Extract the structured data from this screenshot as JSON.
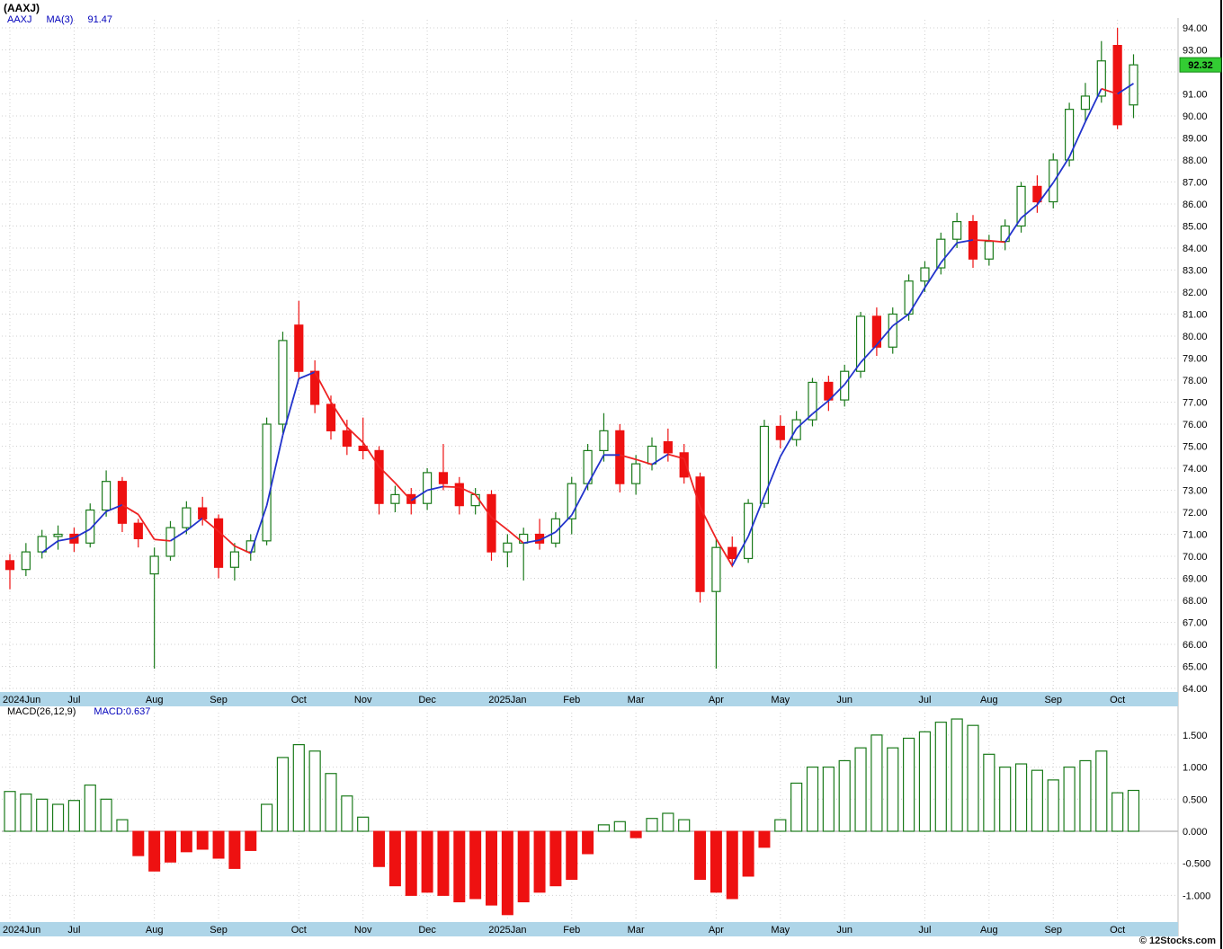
{
  "header": {
    "title": "(AAXJ)",
    "legend": {
      "symbol": "AAXJ",
      "ma_label": "MA(3)",
      "ma_value": "91.47"
    }
  },
  "price_axis": {
    "min": 64,
    "max": 94,
    "step": 1,
    "current_price": 92.32
  },
  "macd_panel": {
    "legend_label": "MACD(26,12,9)",
    "legend_value": "MACD:0.637",
    "axis_ticks": [
      1.5,
      1.0,
      0.5,
      0.0,
      -0.5,
      -1.0
    ],
    "current": 0.637
  },
  "footer": {
    "copyright": "© 12Stocks.com"
  },
  "colors": {
    "up": "#1a7a1a",
    "down": "#ee1111",
    "ma_up": "#2233cc",
    "ma_down": "#ee2222",
    "band": "#aed5e8",
    "grid": "#d0d0d0",
    "zero_line": "#999999",
    "badge_bg": "#33cc33",
    "badge_border": "#118811",
    "axis_text": "#000000",
    "legend_blue": "#0000bb"
  },
  "chart_data": {
    "type": "candlestick",
    "title": "(AAXJ)",
    "timeframe": "weekly",
    "ylim": [
      64,
      94
    ],
    "ohlc_format": [
      "open",
      "high",
      "low",
      "close"
    ],
    "months": [
      {
        "label": "2024Jun",
        "index": 0
      },
      {
        "label": "Jul",
        "index": 4
      },
      {
        "label": "Aug",
        "index": 9
      },
      {
        "label": "Sep",
        "index": 13
      },
      {
        "label": "Oct",
        "index": 18
      },
      {
        "label": "Nov",
        "index": 22
      },
      {
        "label": "Dec",
        "index": 26
      },
      {
        "label": "2025Jan",
        "index": 31
      },
      {
        "label": "Feb",
        "index": 35
      },
      {
        "label": "Mar",
        "index": 39
      },
      {
        "label": "Apr",
        "index": 44
      },
      {
        "label": "May",
        "index": 48
      },
      {
        "label": "Jun",
        "index": 52
      },
      {
        "label": "Jul",
        "index": 57
      },
      {
        "label": "Aug",
        "index": 61
      },
      {
        "label": "Sep",
        "index": 65
      },
      {
        "label": "Oct",
        "index": 69
      }
    ],
    "ohlc": [
      [
        69.8,
        70.1,
        68.5,
        69.4
      ],
      [
        69.4,
        70.6,
        69.1,
        70.2
      ],
      [
        70.2,
        71.2,
        69.9,
        70.9
      ],
      [
        70.9,
        71.4,
        70.3,
        71.0
      ],
      [
        71.0,
        71.3,
        70.2,
        70.6
      ],
      [
        70.6,
        72.4,
        70.4,
        72.1
      ],
      [
        72.1,
        73.9,
        71.8,
        73.4
      ],
      [
        73.4,
        73.6,
        71.1,
        71.5
      ],
      [
        71.5,
        71.7,
        70.4,
        70.8
      ],
      [
        69.2,
        70.4,
        64.9,
        70.0
      ],
      [
        70.0,
        71.6,
        69.8,
        71.3
      ],
      [
        71.3,
        72.5,
        71.0,
        72.2
      ],
      [
        72.2,
        72.7,
        71.4,
        71.7
      ],
      [
        71.7,
        71.9,
        69.0,
        69.5
      ],
      [
        69.5,
        70.6,
        68.9,
        70.2
      ],
      [
        70.2,
        71.0,
        69.8,
        70.7
      ],
      [
        70.7,
        76.3,
        70.5,
        76.0
      ],
      [
        76.0,
        80.2,
        75.6,
        79.8
      ],
      [
        80.5,
        81.6,
        78.0,
        78.4
      ],
      [
        78.4,
        78.9,
        76.5,
        76.9
      ],
      [
        76.9,
        77.3,
        75.3,
        75.7
      ],
      [
        75.7,
        76.2,
        74.6,
        75.0
      ],
      [
        75.0,
        76.3,
        74.4,
        74.8
      ],
      [
        74.8,
        75.0,
        71.9,
        72.4
      ],
      [
        72.4,
        73.2,
        72.0,
        72.8
      ],
      [
        72.8,
        73.1,
        71.9,
        72.4
      ],
      [
        72.4,
        74.0,
        72.1,
        73.8
      ],
      [
        73.8,
        75.1,
        73.0,
        73.3
      ],
      [
        73.3,
        73.6,
        71.9,
        72.3
      ],
      [
        72.3,
        73.1,
        71.9,
        72.8
      ],
      [
        72.8,
        73.0,
        69.8,
        70.2
      ],
      [
        70.2,
        71.0,
        69.5,
        70.6
      ],
      [
        70.6,
        71.3,
        68.9,
        71.0
      ],
      [
        71.0,
        71.7,
        70.3,
        70.6
      ],
      [
        70.6,
        72.0,
        70.4,
        71.7
      ],
      [
        71.7,
        73.6,
        71.0,
        73.3
      ],
      [
        73.3,
        75.1,
        73.0,
        74.8
      ],
      [
        74.8,
        76.5,
        74.3,
        75.7
      ],
      [
        75.7,
        76.0,
        72.9,
        73.3
      ],
      [
        73.3,
        74.6,
        72.8,
        74.2
      ],
      [
        74.2,
        75.4,
        73.9,
        75.0
      ],
      [
        75.2,
        75.8,
        74.3,
        74.7
      ],
      [
        74.7,
        75.1,
        73.3,
        73.6
      ],
      [
        73.6,
        73.8,
        67.9,
        68.4
      ],
      [
        68.4,
        70.8,
        64.9,
        70.4
      ],
      [
        70.4,
        70.9,
        69.5,
        69.9
      ],
      [
        69.9,
        72.6,
        69.7,
        72.4
      ],
      [
        72.4,
        76.2,
        72.2,
        75.9
      ],
      [
        75.9,
        76.4,
        74.9,
        75.3
      ],
      [
        75.3,
        76.6,
        75.0,
        76.2
      ],
      [
        76.2,
        78.1,
        75.9,
        77.9
      ],
      [
        77.9,
        78.2,
        76.6,
        77.1
      ],
      [
        77.1,
        78.7,
        76.8,
        78.4
      ],
      [
        78.4,
        81.1,
        78.1,
        80.9
      ],
      [
        80.9,
        81.3,
        79.1,
        79.5
      ],
      [
        79.5,
        81.3,
        79.2,
        81.0
      ],
      [
        81.0,
        82.8,
        80.7,
        82.5
      ],
      [
        82.5,
        83.4,
        82.0,
        83.1
      ],
      [
        83.1,
        84.7,
        82.8,
        84.4
      ],
      [
        84.4,
        85.6,
        84.0,
        85.2
      ],
      [
        85.2,
        85.5,
        83.1,
        83.5
      ],
      [
        83.5,
        84.6,
        83.2,
        84.3
      ],
      [
        84.3,
        85.3,
        83.9,
        85.0
      ],
      [
        85.0,
        87.0,
        84.7,
        86.8
      ],
      [
        86.8,
        87.3,
        85.6,
        86.1
      ],
      [
        86.1,
        88.3,
        85.8,
        88.0
      ],
      [
        88.0,
        90.6,
        87.7,
        90.3
      ],
      [
        90.3,
        91.5,
        89.7,
        90.9
      ],
      [
        90.9,
        93.4,
        90.6,
        92.5
      ],
      [
        93.2,
        94.0,
        89.4,
        89.6
      ],
      [
        90.5,
        92.8,
        89.9,
        92.32
      ]
    ],
    "ma_window": 3,
    "macd": {
      "type": "bar",
      "params": "26,12,9",
      "ylim": [
        -1.35,
        1.85
      ],
      "current": 0.637,
      "values": [
        0.62,
        0.58,
        0.5,
        0.42,
        0.48,
        0.72,
        0.5,
        0.18,
        -0.38,
        -0.62,
        -0.48,
        -0.32,
        -0.28,
        -0.42,
        -0.58,
        -0.3,
        0.42,
        1.15,
        1.35,
        1.25,
        0.9,
        0.55,
        0.22,
        -0.55,
        -0.85,
        -1.0,
        -0.95,
        -1.0,
        -1.1,
        -1.05,
        -1.15,
        -1.3,
        -1.1,
        -0.95,
        -0.85,
        -0.75,
        -0.35,
        0.1,
        0.15,
        -0.1,
        0.2,
        0.28,
        0.18,
        -0.75,
        -0.95,
        -1.05,
        -0.7,
        -0.25,
        0.18,
        0.75,
        1.0,
        1.0,
        1.1,
        1.3,
        1.5,
        1.3,
        1.45,
        1.55,
        1.7,
        1.75,
        1.65,
        1.2,
        1.0,
        1.05,
        0.95,
        0.8,
        1.0,
        1.1,
        1.25,
        0.6,
        0.637
      ]
    }
  }
}
